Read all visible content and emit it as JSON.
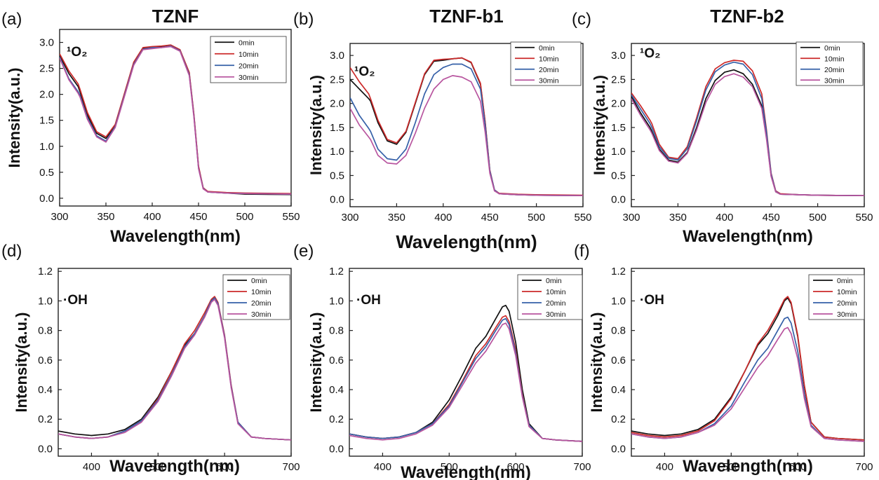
{
  "series_colors": [
    "#111111",
    "#cc2a2a",
    "#3560a8",
    "#b8559f"
  ],
  "chart_data": [
    {
      "letter": "(a)",
      "title": "TZNF",
      "species": "¹O₂",
      "type": "line",
      "xlabel": "Wavelength(nm)",
      "ylabel": "Intensity(a.u.)",
      "xlim": [
        300,
        550
      ],
      "ylim": [
        -0.15,
        3.25
      ],
      "xticks": [
        300,
        350,
        400,
        450,
        500,
        550
      ],
      "yticks": [
        0.0,
        0.5,
        1.0,
        1.5,
        2.0,
        2.5,
        3.0
      ],
      "ytick_labels": [
        "0.0",
        "0.5",
        "1.0",
        "1.5",
        "2.0",
        "2.5",
        "3.0"
      ],
      "legend": "top-right",
      "x": [
        300,
        310,
        320,
        322,
        330,
        340,
        350,
        360,
        370,
        380,
        390,
        400,
        410,
        420,
        430,
        440,
        445,
        450,
        455,
        460,
        480,
        500,
        550
      ],
      "series": [
        {
          "name": "0min",
          "values": [
            2.75,
            2.4,
            2.15,
            2.05,
            1.6,
            1.25,
            1.15,
            1.4,
            2.0,
            2.6,
            2.88,
            2.9,
            2.92,
            2.95,
            2.85,
            2.4,
            1.6,
            0.6,
            0.2,
            0.12,
            0.1,
            0.08,
            0.07
          ]
        },
        {
          "name": "10min",
          "values": [
            2.78,
            2.45,
            2.2,
            2.1,
            1.65,
            1.28,
            1.18,
            1.42,
            2.02,
            2.62,
            2.9,
            2.92,
            2.93,
            2.95,
            2.86,
            2.42,
            1.62,
            0.62,
            0.2,
            0.13,
            0.11,
            0.1,
            0.09
          ]
        },
        {
          "name": "20min",
          "values": [
            2.72,
            2.3,
            2.05,
            1.98,
            1.55,
            1.2,
            1.1,
            1.38,
            1.98,
            2.58,
            2.87,
            2.9,
            2.9,
            2.93,
            2.84,
            2.38,
            1.58,
            0.58,
            0.19,
            0.12,
            0.1,
            0.09,
            0.08
          ]
        },
        {
          "name": "30min",
          "values": [
            2.7,
            2.28,
            2.02,
            1.95,
            1.52,
            1.18,
            1.08,
            1.36,
            1.96,
            2.56,
            2.86,
            2.88,
            2.9,
            2.92,
            2.83,
            2.36,
            1.56,
            0.57,
            0.18,
            0.12,
            0.1,
            0.09,
            0.08
          ]
        }
      ]
    },
    {
      "letter": "(b)",
      "title": "TZNF-b1",
      "species": "¹O₂",
      "type": "line",
      "xlabel": "Wavelength(nm)",
      "ylabel": "Intensity(a.u.)",
      "xlim": [
        300,
        550
      ],
      "ylim": [
        -0.15,
        3.25
      ],
      "xticks": [
        300,
        350,
        400,
        450,
        500,
        550
      ],
      "yticks": [
        0.0,
        0.5,
        1.0,
        1.5,
        2.0,
        2.5,
        3.0
      ],
      "ytick_labels": [
        "0.0",
        "0.5",
        "1.0",
        "1.5",
        "2.0",
        "2.5",
        "3.0"
      ],
      "legend": "top-right",
      "x": [
        300,
        310,
        320,
        322,
        330,
        340,
        350,
        360,
        370,
        380,
        390,
        400,
        410,
        420,
        430,
        440,
        445,
        450,
        455,
        460,
        480,
        500,
        550
      ],
      "series": [
        {
          "name": "0min",
          "values": [
            2.5,
            2.3,
            2.1,
            2.05,
            1.6,
            1.22,
            1.15,
            1.4,
            2.0,
            2.6,
            2.88,
            2.9,
            2.93,
            2.95,
            2.85,
            2.4,
            1.6,
            0.6,
            0.2,
            0.12,
            0.1,
            0.09,
            0.08
          ]
        },
        {
          "name": "10min",
          "values": [
            2.75,
            2.45,
            2.2,
            2.1,
            1.65,
            1.25,
            1.18,
            1.42,
            2.02,
            2.62,
            2.9,
            2.92,
            2.93,
            2.95,
            2.86,
            2.42,
            1.62,
            0.62,
            0.2,
            0.13,
            0.11,
            0.1,
            0.09
          ]
        },
        {
          "name": "20min",
          "values": [
            2.12,
            1.75,
            1.48,
            1.42,
            1.05,
            0.85,
            0.82,
            1.05,
            1.6,
            2.2,
            2.6,
            2.75,
            2.82,
            2.82,
            2.72,
            2.3,
            1.55,
            0.6,
            0.2,
            0.12,
            0.1,
            0.09,
            0.08
          ]
        },
        {
          "name": "30min",
          "values": [
            1.9,
            1.55,
            1.3,
            1.25,
            0.92,
            0.76,
            0.74,
            0.92,
            1.38,
            1.9,
            2.3,
            2.5,
            2.58,
            2.55,
            2.45,
            2.05,
            1.4,
            0.55,
            0.18,
            0.12,
            0.1,
            0.09,
            0.08
          ]
        }
      ]
    },
    {
      "letter": "(c)",
      "title": "TZNF-b2",
      "species": "¹O₂",
      "type": "line",
      "xlabel": "Wavelength(nm)",
      "ylabel": "Intensity(a.u.)",
      "xlim": [
        300,
        550
      ],
      "ylim": [
        -0.15,
        3.25
      ],
      "xticks": [
        300,
        350,
        400,
        450,
        500,
        550
      ],
      "yticks": [
        0.0,
        0.5,
        1.0,
        1.5,
        2.0,
        2.5,
        3.0
      ],
      "ytick_labels": [
        "0.0",
        "0.5",
        "1.0",
        "1.5",
        "2.0",
        "2.5",
        "3.0"
      ],
      "legend": "top-right",
      "x": [
        300,
        310,
        320,
        322,
        330,
        340,
        350,
        360,
        370,
        380,
        390,
        400,
        410,
        420,
        430,
        440,
        445,
        450,
        455,
        460,
        480,
        500,
        550
      ],
      "series": [
        {
          "name": "0min",
          "values": [
            2.15,
            1.8,
            1.5,
            1.42,
            1.05,
            0.82,
            0.78,
            0.98,
            1.5,
            2.1,
            2.48,
            2.65,
            2.7,
            2.62,
            2.4,
            1.95,
            1.3,
            0.5,
            0.16,
            0.11,
            0.1,
            0.09,
            0.08
          ]
        },
        {
          "name": "10min",
          "values": [
            2.22,
            1.95,
            1.65,
            1.58,
            1.15,
            0.88,
            0.85,
            1.1,
            1.7,
            2.35,
            2.72,
            2.85,
            2.9,
            2.88,
            2.68,
            2.2,
            1.45,
            0.55,
            0.18,
            0.12,
            0.1,
            0.09,
            0.08
          ]
        },
        {
          "name": "20min",
          "values": [
            2.18,
            1.88,
            1.58,
            1.5,
            1.1,
            0.86,
            0.82,
            1.06,
            1.64,
            2.28,
            2.66,
            2.8,
            2.86,
            2.82,
            2.6,
            2.1,
            1.4,
            0.53,
            0.17,
            0.11,
            0.1,
            0.09,
            0.08
          ]
        },
        {
          "name": "30min",
          "values": [
            2.1,
            1.75,
            1.45,
            1.38,
            1.02,
            0.8,
            0.76,
            0.96,
            1.45,
            2.02,
            2.4,
            2.56,
            2.62,
            2.55,
            2.35,
            1.9,
            1.26,
            0.48,
            0.16,
            0.11,
            0.1,
            0.09,
            0.08
          ]
        }
      ]
    },
    {
      "letter": "(d)",
      "species": "·OH",
      "type": "line",
      "xlabel": "Wavelength(nm)",
      "ylabel": "Intensity(a.u.)",
      "xlim": [
        350,
        700
      ],
      "ylim": [
        -0.05,
        1.22
      ],
      "xticks": [
        400,
        500,
        600,
        700
      ],
      "yticks": [
        0.0,
        0.2,
        0.4,
        0.6,
        0.8,
        1.0,
        1.2
      ],
      "ytick_labels": [
        "0.0",
        "0.2",
        "0.4",
        "0.6",
        "0.8",
        "1.0",
        "1.2"
      ],
      "legend": "top-right",
      "x": [
        350,
        375,
        400,
        425,
        450,
        475,
        500,
        520,
        540,
        555,
        570,
        580,
        585,
        590,
        600,
        610,
        620,
        640,
        660,
        700
      ],
      "series": [
        {
          "name": "0min",
          "values": [
            0.12,
            0.1,
            0.09,
            0.1,
            0.13,
            0.2,
            0.35,
            0.52,
            0.7,
            0.78,
            0.9,
            1.0,
            1.02,
            0.98,
            0.76,
            0.42,
            0.18,
            0.08,
            0.07,
            0.06
          ]
        },
        {
          "name": "10min",
          "values": [
            0.1,
            0.08,
            0.07,
            0.08,
            0.12,
            0.19,
            0.34,
            0.52,
            0.71,
            0.8,
            0.92,
            1.01,
            1.03,
            0.99,
            0.77,
            0.43,
            0.18,
            0.08,
            0.07,
            0.06
          ]
        },
        {
          "name": "20min",
          "values": [
            0.1,
            0.08,
            0.07,
            0.08,
            0.12,
            0.19,
            0.33,
            0.5,
            0.69,
            0.78,
            0.9,
            1.0,
            1.02,
            0.98,
            0.76,
            0.42,
            0.18,
            0.08,
            0.07,
            0.06
          ]
        },
        {
          "name": "30min",
          "values": [
            0.1,
            0.08,
            0.07,
            0.08,
            0.11,
            0.18,
            0.32,
            0.49,
            0.68,
            0.77,
            0.89,
            0.99,
            1.01,
            0.97,
            0.75,
            0.41,
            0.17,
            0.08,
            0.07,
            0.06
          ]
        }
      ]
    },
    {
      "letter": "(e)",
      "species": "·OH",
      "type": "line",
      "xlabel": "Wavelength(nm)",
      "ylabel": "Intensity(a.u.)",
      "xlim": [
        350,
        700
      ],
      "ylim": [
        -0.05,
        1.22
      ],
      "xticks": [
        400,
        500,
        600,
        700
      ],
      "yticks": [
        0.0,
        0.2,
        0.4,
        0.6,
        0.8,
        1.0,
        1.2
      ],
      "ytick_labels": [
        "0.0",
        "0.2",
        "0.4",
        "0.6",
        "0.8",
        "1.0",
        "1.2"
      ],
      "legend": "top-right",
      "x": [
        350,
        375,
        400,
        425,
        450,
        475,
        500,
        520,
        540,
        555,
        570,
        580,
        585,
        590,
        600,
        610,
        620,
        640,
        660,
        700
      ],
      "series": [
        {
          "name": "0min",
          "values": [
            0.1,
            0.08,
            0.07,
            0.08,
            0.11,
            0.18,
            0.33,
            0.5,
            0.68,
            0.76,
            0.88,
            0.96,
            0.97,
            0.93,
            0.72,
            0.4,
            0.17,
            0.07,
            0.06,
            0.05
          ]
        },
        {
          "name": "10min",
          "values": [
            0.1,
            0.08,
            0.07,
            0.08,
            0.11,
            0.17,
            0.3,
            0.46,
            0.63,
            0.71,
            0.82,
            0.89,
            0.9,
            0.86,
            0.67,
            0.37,
            0.16,
            0.07,
            0.06,
            0.05
          ]
        },
        {
          "name": "20min",
          "values": [
            0.1,
            0.08,
            0.07,
            0.08,
            0.11,
            0.17,
            0.29,
            0.45,
            0.61,
            0.69,
            0.8,
            0.87,
            0.88,
            0.84,
            0.65,
            0.36,
            0.16,
            0.07,
            0.06,
            0.05
          ]
        },
        {
          "name": "30min",
          "values": [
            0.09,
            0.07,
            0.06,
            0.07,
            0.1,
            0.16,
            0.28,
            0.43,
            0.58,
            0.66,
            0.77,
            0.84,
            0.85,
            0.81,
            0.63,
            0.35,
            0.15,
            0.07,
            0.06,
            0.05
          ]
        }
      ]
    },
    {
      "letter": "(f)",
      "species": "·OH",
      "type": "line",
      "xlabel": "Wavelength(nm)",
      "ylabel": "Intensity(a.u.)",
      "xlim": [
        350,
        700
      ],
      "ylim": [
        -0.05,
        1.22
      ],
      "xticks": [
        400,
        500,
        600,
        700
      ],
      "yticks": [
        0.0,
        0.2,
        0.4,
        0.6,
        0.8,
        1.0,
        1.2
      ],
      "ytick_labels": [
        "0.0",
        "0.2",
        "0.4",
        "0.6",
        "0.8",
        "1.0",
        "1.2"
      ],
      "legend": "top-right",
      "x": [
        350,
        375,
        400,
        425,
        450,
        475,
        500,
        520,
        540,
        555,
        570,
        580,
        585,
        590,
        600,
        610,
        620,
        640,
        660,
        700
      ],
      "series": [
        {
          "name": "0min",
          "values": [
            0.12,
            0.1,
            0.09,
            0.1,
            0.13,
            0.2,
            0.35,
            0.52,
            0.7,
            0.78,
            0.9,
            1.0,
            1.02,
            0.98,
            0.76,
            0.42,
            0.18,
            0.08,
            0.07,
            0.06
          ]
        },
        {
          "name": "10min",
          "values": [
            0.11,
            0.09,
            0.08,
            0.09,
            0.12,
            0.19,
            0.34,
            0.52,
            0.71,
            0.8,
            0.92,
            1.01,
            1.03,
            0.99,
            0.77,
            0.43,
            0.18,
            0.08,
            0.07,
            0.06
          ]
        },
        {
          "name": "20min",
          "values": [
            0.1,
            0.08,
            0.07,
            0.08,
            0.11,
            0.17,
            0.29,
            0.45,
            0.6,
            0.68,
            0.8,
            0.88,
            0.89,
            0.85,
            0.66,
            0.37,
            0.16,
            0.07,
            0.06,
            0.05
          ]
        },
        {
          "name": "30min",
          "values": [
            0.1,
            0.08,
            0.07,
            0.08,
            0.11,
            0.16,
            0.27,
            0.41,
            0.55,
            0.63,
            0.74,
            0.81,
            0.82,
            0.78,
            0.61,
            0.34,
            0.15,
            0.07,
            0.06,
            0.05
          ]
        }
      ]
    }
  ]
}
